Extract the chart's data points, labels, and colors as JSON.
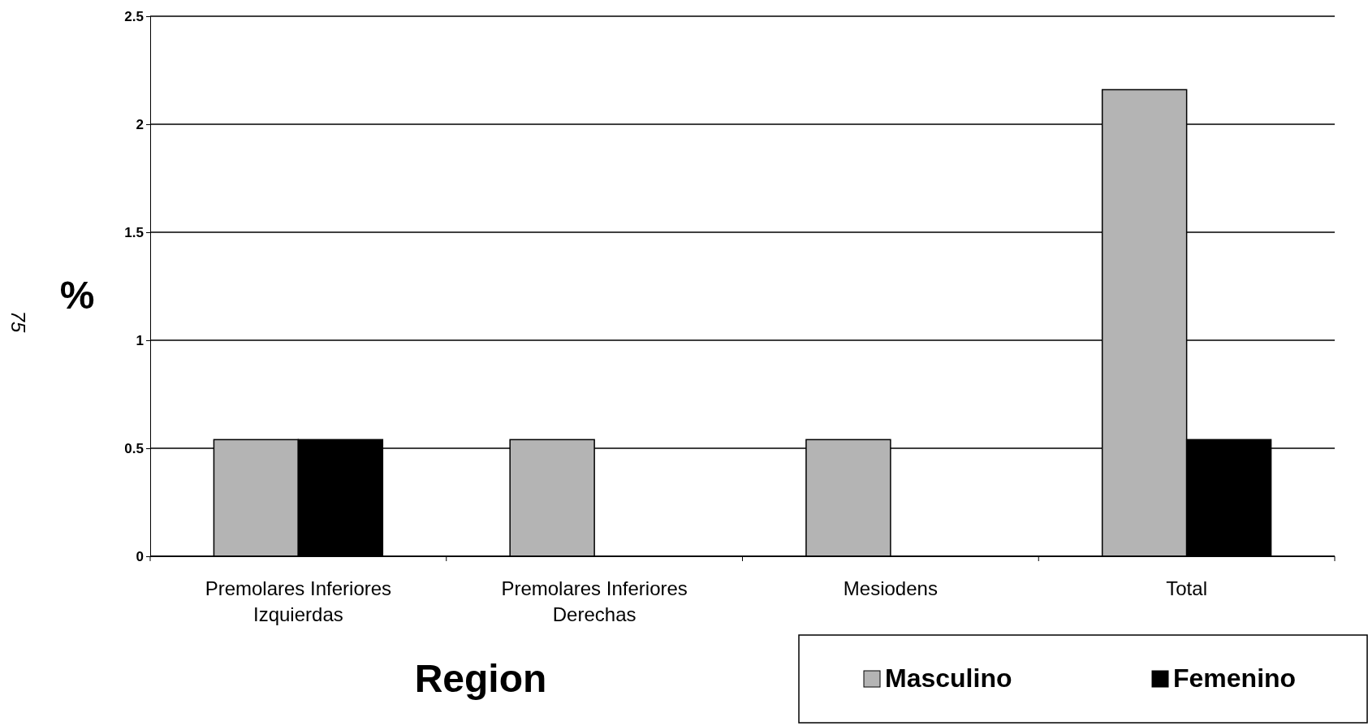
{
  "chart_data": {
    "type": "bar",
    "xlabel": "Region",
    "ylabel": "%",
    "categories": [
      "Premolares Inferiores Izquierdas",
      "Premolares Inferiores Derechas",
      "Mesiodens",
      "Total"
    ],
    "series": [
      {
        "name": "Masculino",
        "color": "#b4b4b4",
        "values": [
          0.54,
          0.54,
          0.54,
          2.16
        ]
      },
      {
        "name": "Femenino",
        "color": "#000000",
        "values": [
          0.54,
          null,
          null,
          0.54
        ]
      }
    ],
    "ylim": [
      0,
      2.5
    ],
    "yticks": [
      0,
      0.5,
      1,
      1.5,
      2,
      2.5
    ],
    "grid": "y",
    "legend": "bottom right",
    "annotations": [
      "75"
    ]
  }
}
